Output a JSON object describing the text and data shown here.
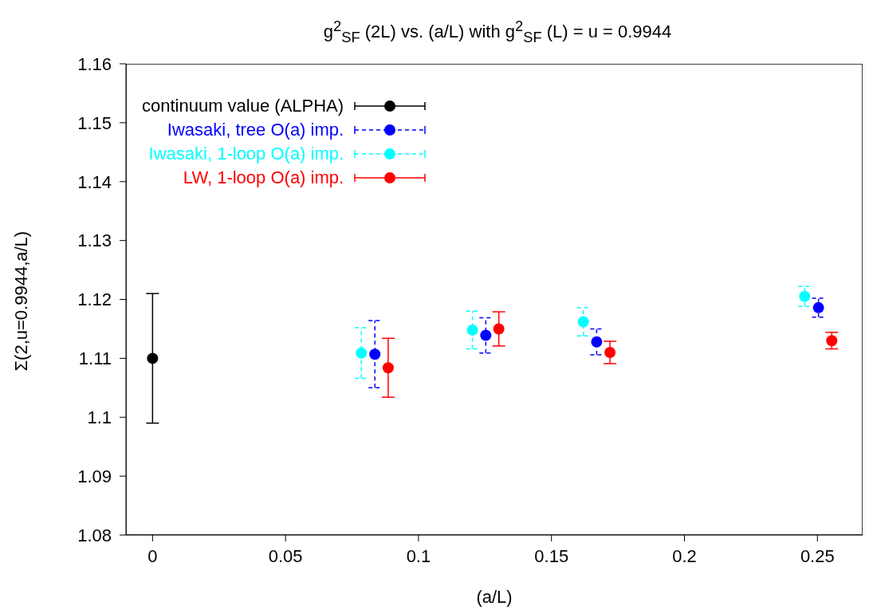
{
  "chart_data": {
    "type": "scatter",
    "title": "g$^{2}$$_{SF}$ (2L) vs. (a/L) with g$^{2}$$_{SF}$ (L) = u = 0.9944",
    "xlabel": "(a/L)",
    "ylabel": "Σ(2,u=0.9944,a/L)",
    "xlim": [
      -0.01,
      0.267
    ],
    "xticks": [
      0,
      0.05,
      0.1,
      0.15,
      0.2,
      0.25
    ],
    "ylim": [
      1.08,
      1.16
    ],
    "yticks": [
      1.08,
      1.09,
      1.1,
      1.11,
      1.12,
      1.13,
      1.14,
      1.15,
      1.16
    ],
    "legend": "top left",
    "marker": "circle",
    "series": [
      {
        "name": "continuum value (ALPHA)",
        "color": "#000000",
        "line_style": "solid",
        "x": [
          0
        ],
        "values": [
          1.11
        ],
        "errors": [
          0.011
        ]
      },
      {
        "name": "Iwasaki, tree O(a) imp.",
        "color": "#0000ff",
        "line_style": "dashed",
        "x": [
          0.0836,
          0.1253,
          0.167,
          0.2504
        ],
        "values": [
          1.1107,
          1.1139,
          1.1128,
          1.1186
        ],
        "errors": [
          0.0057,
          0.003,
          0.0022,
          0.0016
        ]
      },
      {
        "name": "Iwasaki, 1-loop O(a) imp.",
        "color": "#00ffff",
        "line_style": "dashed",
        "x": [
          0.0785,
          0.1203,
          0.162,
          0.2452
        ],
        "values": [
          1.1109,
          1.1148,
          1.1162,
          1.1205
        ],
        "errors": [
          0.0043,
          0.0032,
          0.0024,
          0.0017
        ]
      },
      {
        "name": "LW, 1-loop O(a) imp.",
        "color": "#ff0000",
        "line_style": "solid",
        "x": [
          0.0886,
          0.1302,
          0.172,
          0.2554
        ],
        "values": [
          1.1084,
          1.115,
          1.111,
          1.113
        ],
        "errors": [
          0.005,
          0.0029,
          0.0019,
          0.0014
        ]
      }
    ]
  }
}
